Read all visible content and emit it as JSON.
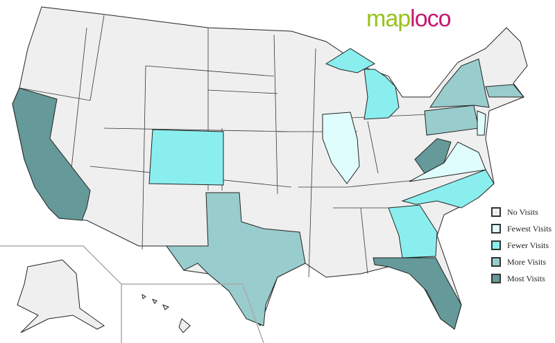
{
  "logo": {
    "part1": "map",
    "part2": "loco"
  },
  "legend": [
    {
      "label": "No Visits",
      "color": "#efefef"
    },
    {
      "label": "Fewest Visits",
      "color": "#e0fdfd"
    },
    {
      "label": "Fewer Visits",
      "color": "#8aeeee"
    },
    {
      "label": "More Visits",
      "color": "#99cccc"
    },
    {
      "label": "Most Visits",
      "color": "#669999"
    }
  ],
  "states": {
    "most": [
      "California",
      "West Virginia",
      "Florida"
    ],
    "more": [
      "Texas",
      "New York",
      "Pennsylvania",
      "Massachusetts"
    ],
    "fewer": [
      "Colorado",
      "Michigan",
      "North Carolina",
      "Georgia"
    ],
    "fewest": [
      "Illinois",
      "Virginia",
      "New Jersey"
    ]
  }
}
